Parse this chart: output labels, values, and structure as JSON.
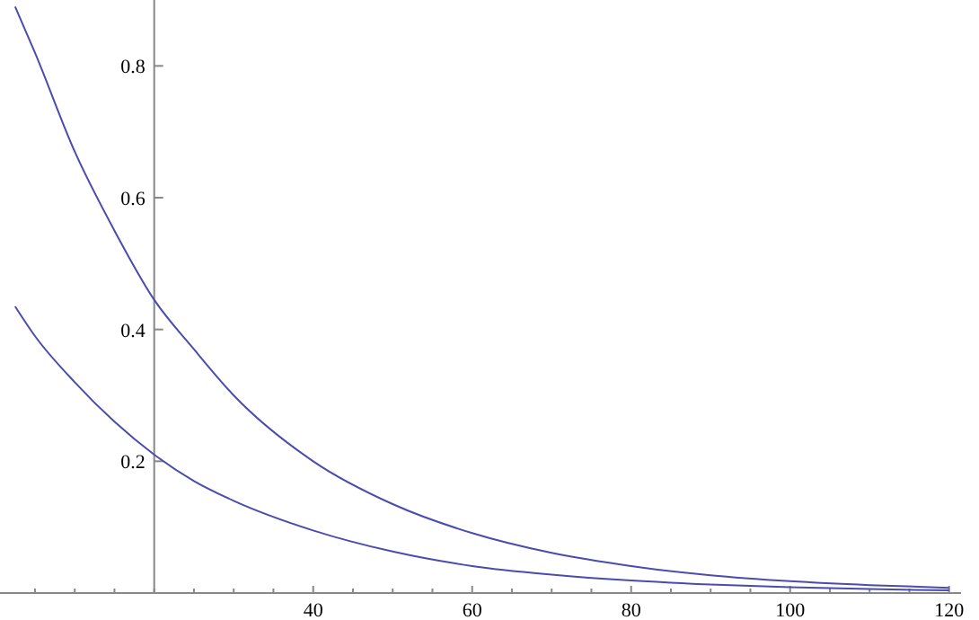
{
  "chart_data": {
    "type": "line",
    "x": [
      2.5,
      5,
      10,
      15,
      20,
      25,
      30,
      40,
      50,
      60,
      70,
      80,
      90,
      100,
      110,
      120
    ],
    "series": [
      {
        "color": "#4b4bb0",
        "values": [
          0.89,
          0.82,
          0.67,
          0.55,
          0.445,
          0.37,
          0.3,
          0.2,
          0.135,
          0.091,
          0.061,
          0.041,
          0.027,
          0.018,
          0.012,
          0.008
        ]
      },
      {
        "color": "#4b4bb0",
        "values": [
          0.435,
          0.39,
          0.32,
          0.26,
          0.21,
          0.17,
          0.14,
          0.095,
          0.063,
          0.041,
          0.028,
          0.019,
          0.013,
          0.009,
          0.006,
          0.004
        ]
      }
    ],
    "xlim": [
      0.6,
      121.5
    ],
    "ylim": [
      0,
      0.9
    ],
    "xticks": [
      {
        "value": 20,
        "label": null
      },
      {
        "value": 5,
        "label": null
      },
      {
        "value": 10,
        "label": null
      },
      {
        "value": 15,
        "label": null
      },
      {
        "value": 25,
        "label": null
      },
      {
        "value": 30,
        "label": null
      },
      {
        "value": 35,
        "label": null
      },
      40,
      {
        "value": 45,
        "label": null
      },
      {
        "value": 50,
        "label": null
      },
      {
        "value": 55,
        "label": null
      },
      60,
      {
        "value": 65,
        "label": null
      },
      {
        "value": 70,
        "label": null
      },
      {
        "value": 75,
        "label": null
      },
      80,
      {
        "value": 85,
        "label": null
      },
      {
        "value": 90,
        "label": null
      },
      {
        "value": 95,
        "label": null
      },
      100,
      {
        "value": 105,
        "label": null
      },
      {
        "value": 110,
        "label": null
      },
      {
        "value": 115,
        "label": null
      },
      120
    ],
    "yticks": [
      0.2,
      0.4,
      0.6,
      0.8
    ],
    "marker": "none",
    "line_style": "solid",
    "grid": false
  }
}
